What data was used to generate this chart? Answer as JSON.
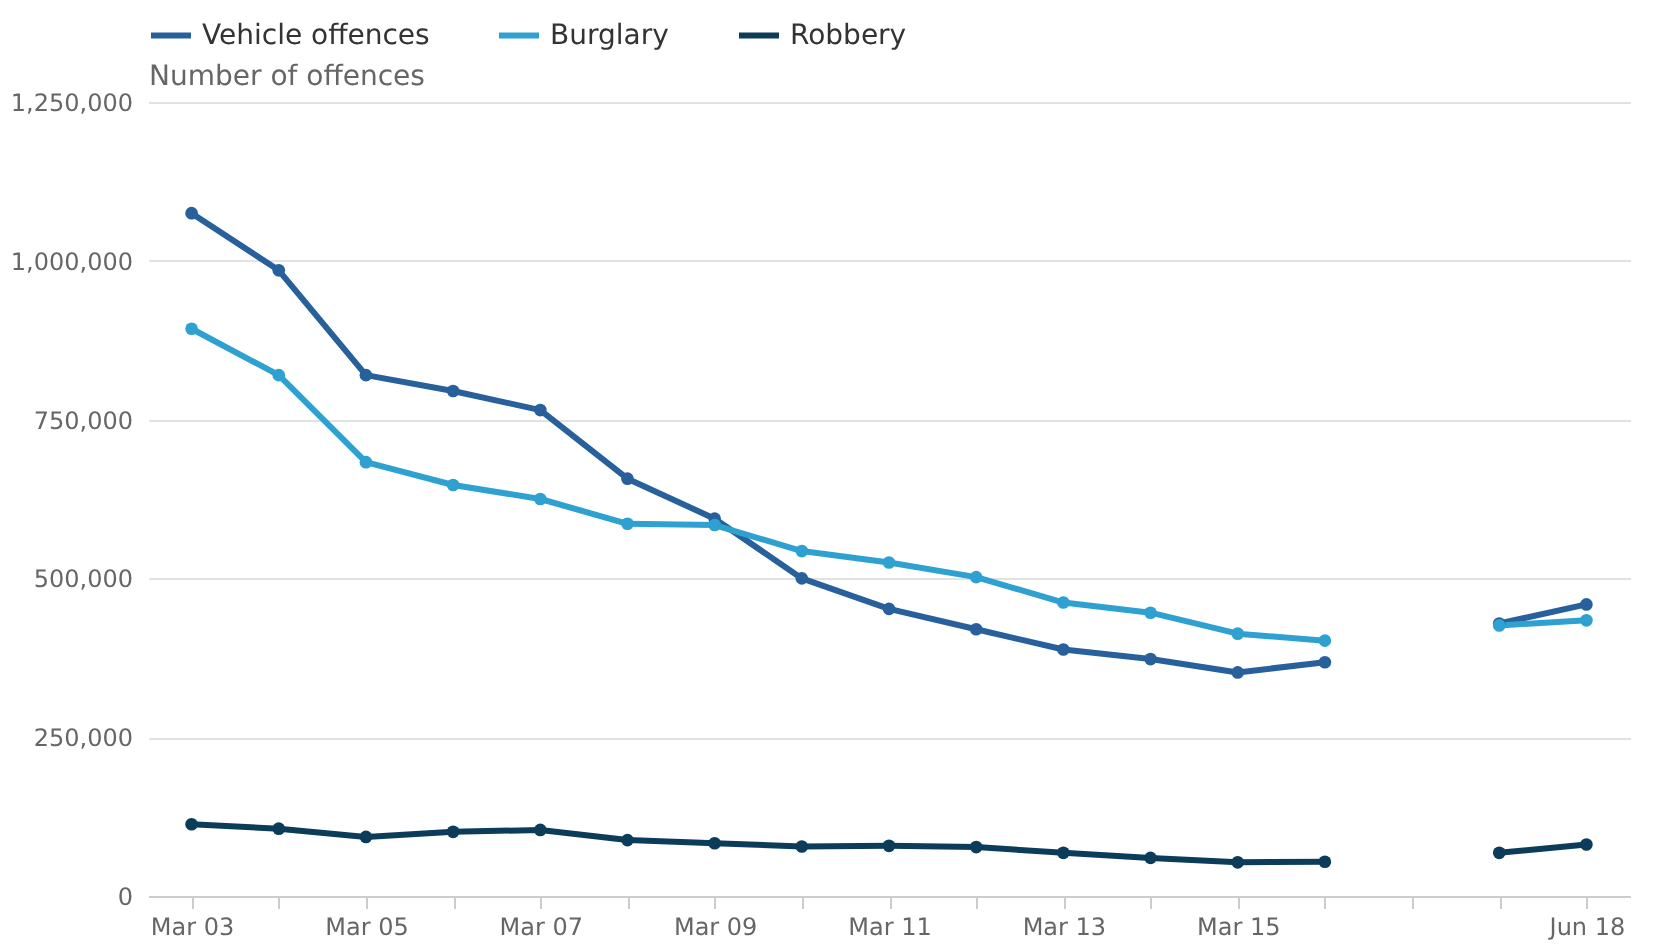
{
  "chart_data": {
    "type": "line",
    "ylabel": "Number of offences",
    "categories": [
      "Mar 03",
      null,
      "Mar 05",
      null,
      "Mar 07",
      null,
      "Mar 09",
      null,
      "Mar 11",
      null,
      "Mar 13",
      null,
      "Mar 15",
      null,
      null,
      null,
      "Jun 18"
    ],
    "series": [
      {
        "name": "Vehicle offences",
        "color": "#27609b",
        "values": [
          1075000,
          985000,
          820000,
          795000,
          765000,
          657000,
          594000,
          500000,
          452000,
          420000,
          388000,
          373000,
          352000,
          368000,
          null,
          429000,
          459000
        ]
      },
      {
        "name": "Burglary",
        "color": "#2ea1d1",
        "values": [
          893000,
          820000,
          683000,
          647000,
          625000,
          586000,
          584000,
          543000,
          525000,
          502000,
          462000,
          446000,
          413000,
          402000,
          null,
          426000,
          434000
        ]
      },
      {
        "name": "Robbery",
        "color": "#0b3c5a",
        "values": [
          113000,
          106000,
          93000,
          101000,
          104000,
          88000,
          83000,
          78000,
          79000,
          77000,
          68000,
          60000,
          53000,
          54000,
          null,
          68000,
          81000
        ]
      }
    ],
    "ylim": [
      0,
      1250000
    ],
    "yticks": [
      0,
      {
        "value": 250000,
        "label": "250,000"
      },
      {
        "value": 500000,
        "label": "500,000"
      },
      {
        "value": 750000,
        "label": "750,000"
      },
      {
        "value": 1000000,
        "label": "1,000,000"
      },
      {
        "value": 1250000,
        "label": "1,250,000"
      }
    ],
    "grid": "y",
    "legend": "top left",
    "marker": "circle",
    "line_style": "solid"
  }
}
